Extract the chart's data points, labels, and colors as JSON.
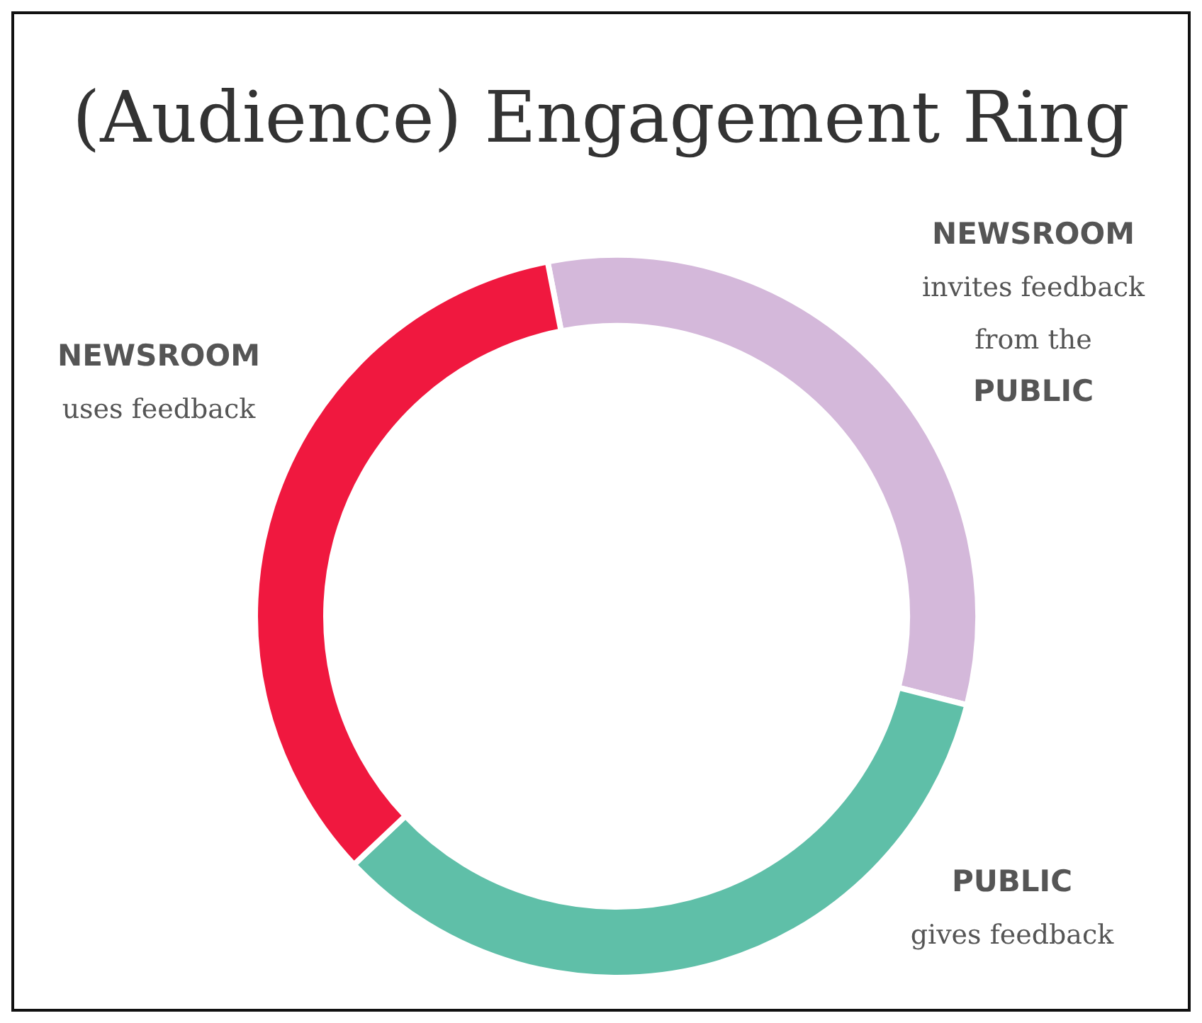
{
  "chart_data": {
    "type": "donut",
    "title": "(Audience) Engagement Ring",
    "categories": [
      "NEWSROOM\ninvites feedback\nfrom the\nPUBLIC",
      "PUBLIC\ngives feedback",
      "NEWSROOM\nuses feedback"
    ],
    "values": [
      32,
      34,
      34
    ],
    "colors": [
      "#d4b8da",
      "#5fbfa8",
      "#f0183f"
    ]
  }
}
